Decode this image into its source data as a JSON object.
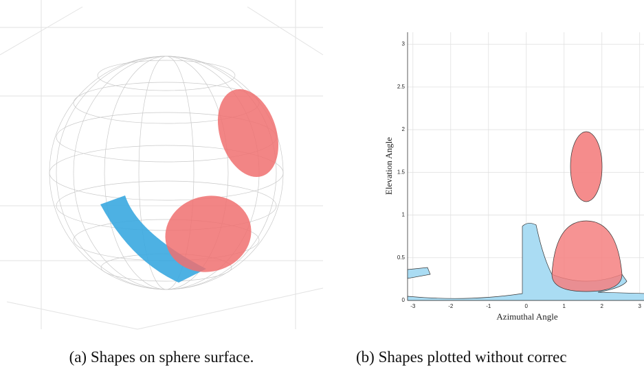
{
  "subfigure_a": {
    "caption": "(a) Shapes on sphere surface."
  },
  "subfigure_b": {
    "caption": "(b) Shapes plotted without correc",
    "plot": {
      "xlabel": "Azimuthal Angle",
      "ylabel": "Elevation Angle",
      "xlim": [
        -3.14159,
        3.14159
      ],
      "ylim": [
        0,
        3.14159
      ],
      "xticks": [
        -3,
        -2,
        -1,
        0,
        1,
        2,
        3
      ],
      "yticks": [
        0,
        0.5,
        1,
        1.5,
        2,
        2.5,
        3
      ]
    }
  }
}
